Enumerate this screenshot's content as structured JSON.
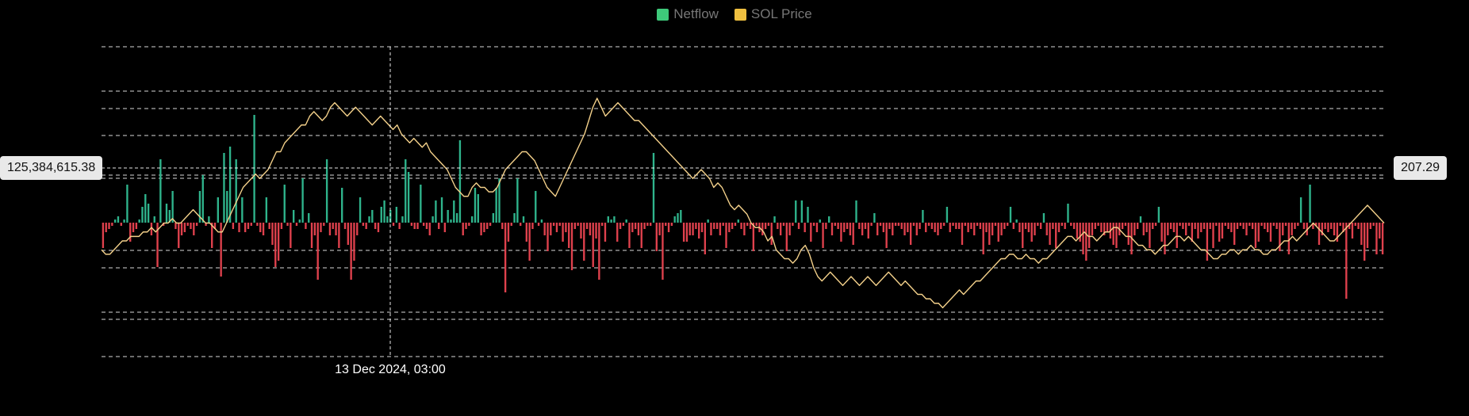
{
  "legend": {
    "netflow_label": "Netflow",
    "price_label": "SOL Price"
  },
  "crosshair": {
    "netflow_value": "125,384,615.38",
    "price_value": "207.29",
    "time_label": "13 Dec 2024, 03:00"
  },
  "colors": {
    "inflow": "#2fb48c",
    "outflow": "#e0414d",
    "legend_netflow": "#3ec97a",
    "legend_price": "#f0c040",
    "price_line": "#f3d08a",
    "grid": "#ffffff"
  },
  "chart_data": {
    "type": "bar+line",
    "series": [
      {
        "name": "Netflow",
        "values": [
          -40,
          -15,
          -10,
          -5,
          5,
          10,
          -5,
          5,
          60,
          -30,
          -15,
          -10,
          5,
          25,
          45,
          30,
          -20,
          10,
          -70,
          100,
          -5,
          30,
          20,
          50,
          -10,
          -40,
          -20,
          -15,
          -5,
          -10,
          -20,
          -5,
          50,
          75,
          -5,
          10,
          -40,
          -10,
          40,
          -85,
          110,
          50,
          120,
          -10,
          100,
          -15,
          40,
          -15,
          -10,
          -5,
          170,
          -5,
          -15,
          -20,
          40,
          -10,
          -35,
          -70,
          -60,
          -10,
          60,
          -5,
          -40,
          20,
          -5,
          5,
          70,
          -10,
          15,
          -40,
          -20,
          -90,
          -15,
          -5,
          100,
          -20,
          -10,
          -20,
          -40,
          55,
          -10,
          -35,
          -90,
          -60,
          -20,
          40,
          -5,
          -10,
          10,
          20,
          -10,
          -15,
          25,
          35,
          10,
          20,
          -5,
          25,
          -10,
          10,
          100,
          80,
          -5,
          -10,
          -10,
          60,
          -5,
          -10,
          -20,
          10,
          35,
          -10,
          40,
          -15,
          20,
          5,
          35,
          15,
          130,
          -20,
          -10,
          -5,
          10,
          55,
          45,
          -20,
          -15,
          -10,
          -5,
          15,
          55,
          70,
          -10,
          -110,
          -30,
          -5,
          15,
          70,
          -5,
          10,
          -30,
          -60,
          -10,
          50,
          -5,
          5,
          -20,
          -45,
          -20,
          -5,
          -15,
          -5,
          -30,
          -15,
          -40,
          -75,
          -10,
          -5,
          -25,
          -60,
          -10,
          -20,
          -70,
          -25,
          -90,
          -5,
          -30,
          10,
          5,
          10,
          -30,
          -10,
          -5,
          5,
          -40,
          -15,
          -10,
          -20,
          -40,
          -10,
          -5,
          -5,
          110,
          -45,
          -20,
          -90,
          -5,
          -15,
          -5,
          10,
          15,
          20,
          -30,
          -30,
          -20,
          -20,
          -10,
          -25,
          -15,
          -50,
          5,
          -20,
          -10,
          -10,
          -20,
          -5,
          -40,
          -15,
          -10,
          -5,
          5,
          -10,
          -20,
          -5,
          -10,
          -45,
          -5,
          -15,
          -20,
          -10,
          -5,
          -35,
          10,
          -10,
          -20,
          -5,
          -45,
          -20,
          -5,
          35,
          -10,
          35,
          -15,
          25,
          -30,
          -5,
          -15,
          5,
          -40,
          -10,
          10,
          -20,
          -5,
          -10,
          -30,
          -15,
          -10,
          -20,
          -35,
          35,
          -10,
          -20,
          -10,
          -25,
          -5,
          15,
          -20,
          -5,
          -15,
          -40,
          -10,
          -20,
          -5,
          -5,
          -10,
          -20,
          -15,
          -35,
          -5,
          -20,
          -10,
          20,
          -15,
          -5,
          -10,
          -15,
          -20,
          -10,
          -5,
          25,
          -15,
          -5,
          -10,
          -10,
          -35,
          -5,
          -15,
          -10,
          -20,
          -5,
          -10,
          -50,
          -15,
          -35,
          -20,
          -5,
          -30,
          -20,
          -10,
          -5,
          25,
          -10,
          5,
          -15,
          -40,
          -10,
          -15,
          -30,
          -20,
          -5,
          -10,
          15,
          -20,
          -35,
          -10,
          -40,
          -15,
          -5,
          -10,
          30,
          -5,
          -10,
          -25,
          -30,
          -50,
          -60,
          -40,
          -20,
          -10,
          -5,
          -15,
          -20,
          -15,
          -25,
          -35,
          -40,
          -20,
          -10,
          -5,
          -35,
          -50,
          -20,
          -10,
          10,
          -20,
          -15,
          -40,
          -10,
          -5,
          25,
          -30,
          -50,
          -20,
          -10,
          -15,
          -40,
          -5,
          -10,
          -20,
          -5,
          -30,
          -10,
          -25,
          -15,
          -10,
          -60,
          -10,
          -40,
          -5,
          -30,
          -25,
          -5,
          -10,
          -15,
          -35,
          -10,
          -5,
          -10,
          -20,
          -5,
          -10,
          -40,
          -30,
          -5,
          -10,
          -15,
          -30,
          -5,
          -10,
          -45,
          -20,
          -5,
          -50,
          -20,
          -10,
          -5,
          40,
          -10,
          -20,
          60,
          -10,
          -5,
          -35,
          -20,
          -10,
          -15,
          -10,
          -20,
          -30,
          -5,
          -15,
          -120,
          -10,
          -25,
          -5,
          -10,
          -35,
          -60,
          -40,
          -10,
          -5,
          -50,
          -25,
          -50
        ],
        "color": "diverging"
      },
      {
        "name": "SOL Price",
        "values": [
          206,
          205.5,
          205.5,
          206,
          206.5,
          207,
          207,
          207.5,
          207.5,
          207.5,
          208,
          208,
          208.5,
          208,
          208.5,
          209,
          209,
          209.5,
          209,
          209,
          209.5,
          210,
          210.5,
          210,
          209.5,
          209,
          209,
          208.5,
          208,
          208,
          209,
          210,
          211,
          212,
          213,
          213.5,
          214,
          214.5,
          214,
          214.5,
          215,
          216,
          217,
          217,
          218,
          218.5,
          219,
          219.5,
          220,
          220,
          221,
          221.5,
          221,
          220.5,
          221,
          222,
          222.5,
          222,
          221.5,
          221,
          221.5,
          222,
          221.5,
          221,
          220.5,
          220,
          220.5,
          221,
          220.5,
          220,
          219.5,
          220,
          219,
          218.5,
          218,
          218.5,
          218,
          217.5,
          218,
          217,
          216.5,
          216,
          215.5,
          215,
          214,
          213,
          212.5,
          212,
          212,
          213,
          213.5,
          213,
          213,
          212.5,
          212.5,
          213,
          214,
          215,
          215.5,
          216,
          216.5,
          217,
          217,
          216.5,
          216,
          215,
          214,
          213,
          212.5,
          212,
          213,
          214,
          215,
          216,
          217,
          218,
          219,
          220.5,
          222,
          223,
          222,
          221,
          221.5,
          222,
          222.5,
          222,
          221.5,
          221,
          220.5,
          220.5,
          220,
          219.5,
          219,
          218.5,
          218,
          217.5,
          217,
          216.5,
          216,
          215.5,
          215,
          214.5,
          214,
          214.5,
          215,
          214.5,
          214,
          213,
          213.5,
          213,
          212,
          211,
          210.5,
          211,
          210.5,
          210,
          209,
          208.5,
          208.5,
          208,
          207,
          207.5,
          206,
          205.5,
          205,
          205,
          204.5,
          205,
          206,
          206.5,
          205.5,
          204,
          203,
          202.5,
          203,
          203.5,
          203,
          202.5,
          202,
          202.5,
          203,
          202.5,
          202,
          202.5,
          203,
          202.5,
          202,
          202.5,
          203,
          203.5,
          203,
          202.5,
          202,
          202.5,
          202,
          201.5,
          201,
          201,
          200.5,
          200.5,
          200,
          200,
          199.5,
          200,
          200.5,
          201,
          201.5,
          201,
          201.5,
          202,
          202.5,
          202.5,
          203,
          203.5,
          204,
          204.5,
          205,
          205,
          205.5,
          205.5,
          205,
          205,
          205.5,
          205,
          205,
          204.5,
          205,
          205,
          205.5,
          206,
          206.5,
          207,
          207.5,
          207.5,
          207,
          207.5,
          208,
          207.5,
          207.5,
          207,
          207.5,
          208,
          208,
          208.5,
          208.5,
          208,
          207.5,
          207.5,
          207,
          206.5,
          206.5,
          206,
          206,
          205.5,
          206,
          206.5,
          206.5,
          207,
          207.5,
          207.5,
          207,
          207.5,
          207,
          206.5,
          206,
          206,
          205.5,
          205,
          205,
          205.5,
          205.5,
          206,
          206,
          205.5,
          206,
          206,
          206.5,
          206,
          206,
          205.5,
          205.5,
          206,
          206,
          206.5,
          207,
          207,
          207.5,
          207,
          207.5,
          208,
          208.5,
          209,
          208.5,
          208,
          207.5,
          207,
          207,
          207.5,
          208,
          208.5,
          209,
          209.5,
          210,
          210.5,
          211,
          210.5,
          210,
          209.5,
          209
        ],
        "color": "#f3d08a"
      }
    ],
    "crosshair_netflow": 125384615.38,
    "crosshair_price": 207.29,
    "crosshair_time": "13 Dec 2024, 03:00",
    "grid": true,
    "legend_position": "top-center"
  }
}
